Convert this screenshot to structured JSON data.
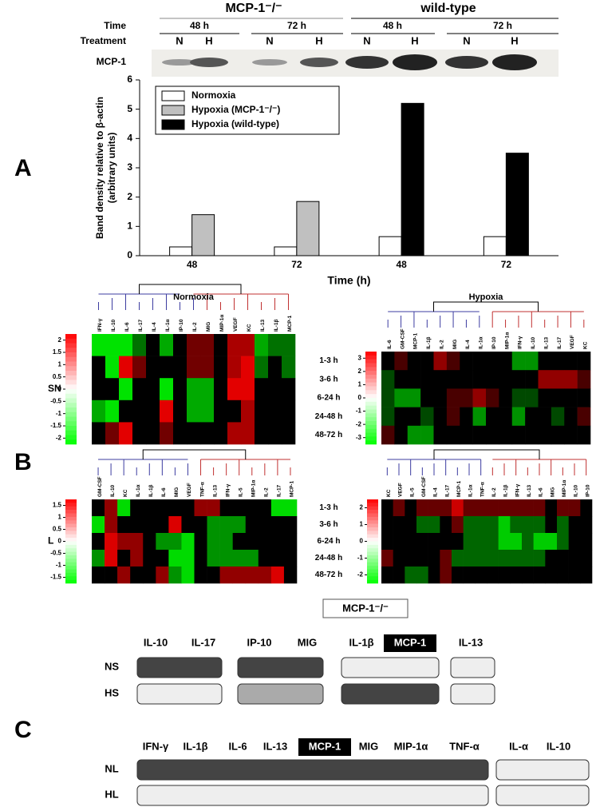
{
  "panel_labels": [
    "A",
    "B",
    "C"
  ],
  "blot": {
    "row_labels": [
      "Time",
      "Treatment",
      "MCP-1"
    ],
    "groups": [
      "MCP-1⁻/⁻",
      "wild-type"
    ],
    "times": [
      "48 h",
      "72 h",
      "48 h",
      "72 h"
    ],
    "treatments": [
      "N",
      "H",
      "N",
      "H",
      "N",
      "H",
      "N",
      "H"
    ]
  },
  "chart_data": [
    {
      "type": "bar",
      "xlabel": "Time (h)",
      "ylabel": [
        "Band density relative to β-actin",
        "(arbitrary units)"
      ],
      "categories": [
        "48",
        "72",
        "48",
        "72"
      ],
      "series": [
        {
          "name": "Normoxia",
          "color": "#ffffff",
          "values": [
            0.3,
            0.3,
            0.65,
            0.65
          ]
        },
        {
          "name": "Hypoxia (MCP-1⁻/⁻)",
          "color": "#c0c0c0",
          "values": [
            1.4,
            1.85,
            null,
            null
          ]
        },
        {
          "name": "Hypoxia (wild-type)",
          "color": "#000000",
          "values": [
            null,
            null,
            5.2,
            3.5
          ]
        }
      ],
      "ylim": [
        0,
        6
      ],
      "yticks": [
        0,
        1,
        2,
        3,
        4,
        5,
        6
      ],
      "legend": "top-left"
    },
    {
      "type": "heatmap",
      "title": "Normoxia",
      "side_label": "SN",
      "columns": [
        "IFN-γ",
        "IL-10",
        "IL-6",
        "IL-17",
        "IL-4",
        "IL-1α",
        "IP-10",
        "IL-2",
        "MIG",
        "MIP-1α",
        "VEGF",
        "KC",
        "IL-13",
        "IL-1β",
        "MCP-1"
      ],
      "clim": [
        -2.25,
        2.25
      ],
      "cticks": [
        2,
        1.5,
        1,
        0.5,
        0,
        -0.5,
        -1,
        -1.5,
        -2
      ],
      "values": [
        [
          -2,
          -2,
          -2,
          -1,
          0,
          -1.5,
          0,
          1,
          1,
          0,
          1.5,
          1.5,
          -1.5,
          -1,
          -1
        ],
        [
          0,
          -2,
          2,
          1,
          0,
          0,
          0,
          1,
          1,
          0,
          1.5,
          2,
          -1,
          0,
          -1
        ],
        [
          0,
          0,
          -2,
          0,
          0,
          -2,
          0,
          -1.5,
          -1.5,
          0,
          2,
          2,
          0,
          0,
          0
        ],
        [
          -1.5,
          -2,
          0,
          0,
          0,
          2,
          0,
          -1.5,
          -1.5,
          0,
          0,
          1.5,
          0,
          0,
          0
        ],
        [
          0,
          1,
          2,
          0,
          0,
          1,
          0,
          0,
          0,
          0,
          1.5,
          1.5,
          0,
          0,
          0
        ]
      ]
    },
    {
      "type": "heatmap",
      "title": "Hypoxia",
      "rows": [
        "1-3 h",
        "3-6 h",
        "6-24 h",
        "24-48 h",
        "48-72 h"
      ],
      "columns": [
        "IL-6",
        "GM-CSF",
        "MCP-1",
        "IL-1β",
        "IL-2",
        "MIG",
        "IL-4",
        "IL-1α",
        "IP-10",
        "MIP-1α",
        "IFN-γ",
        "IL-10",
        "IL-13",
        "IL-17",
        "VEGF",
        "KC"
      ],
      "clim": [
        -3.5,
        3.5
      ],
      "cticks": [
        3,
        2,
        1,
        0,
        -1,
        -2,
        -3
      ],
      "values": [
        [
          0,
          1,
          0,
          0,
          2,
          1,
          0,
          0,
          0,
          0,
          -2,
          -2,
          0,
          0,
          0,
          0
        ],
        [
          -1,
          0,
          0,
          0,
          0,
          0,
          0,
          0,
          0,
          0,
          0,
          0,
          2,
          2,
          2,
          1
        ],
        [
          -1,
          -2,
          -2,
          0,
          0,
          1,
          1,
          2,
          1,
          0,
          -1,
          -1,
          0,
          0,
          0,
          0
        ],
        [
          -1,
          0,
          0,
          -1,
          0,
          1,
          0,
          -2,
          0,
          0,
          -2,
          0,
          0,
          -1,
          0,
          1
        ],
        [
          1,
          0,
          -2,
          -2,
          0,
          0,
          0,
          0,
          0,
          0,
          0,
          0,
          0,
          0,
          0,
          0
        ]
      ]
    },
    {
      "type": "heatmap",
      "side_label": "L",
      "columns": [
        "GM-CSF",
        "IL-10",
        "KC",
        "IL-1α",
        "IL-1β",
        "IL-6",
        "MIG",
        "VEGF",
        "TNF-α",
        "IL-13",
        "IFN-γ",
        "IL-5",
        "MIP-1α",
        "IL-2",
        "IL-17",
        "MCP-1"
      ],
      "clim": [
        -1.75,
        1.75
      ],
      "cticks": [
        1.5,
        1,
        0.5,
        0,
        -0.5,
        -1,
        -1.5
      ],
      "values": [
        [
          0,
          1,
          -1.5,
          0,
          0,
          0,
          0,
          0,
          1,
          1,
          0,
          0,
          0,
          0,
          -1.5,
          -1.5
        ],
        [
          -1.5,
          1,
          0,
          0,
          0,
          0,
          1.5,
          0,
          0,
          -1,
          -1,
          -1,
          0,
          0,
          0,
          0
        ],
        [
          0,
          1.5,
          1,
          1,
          0,
          -1,
          -1,
          -1.5,
          0,
          -1,
          -1,
          0,
          0,
          0,
          0,
          0
        ],
        [
          -1,
          1.5,
          0,
          1,
          0,
          0,
          -1.5,
          -1.5,
          0,
          -1,
          -1,
          -1,
          -1,
          0,
          0,
          0
        ],
        [
          0,
          0,
          1,
          0,
          0,
          1,
          -1,
          -1.5,
          0,
          0,
          1,
          1,
          1,
          1,
          1.5,
          0
        ]
      ]
    },
    {
      "type": "heatmap",
      "rows": [
        "1-3 h",
        "3-6 h",
        "6-24 h",
        "24-48 h",
        "48-72 h"
      ],
      "columns": [
        "KC",
        "VEGF",
        "IL-5",
        "GM-CSF",
        "IL-4",
        "IL-17",
        "MCP-1",
        "IL-1α",
        "TNF-α",
        "IL-2",
        "IL-1β",
        "IFN-γ",
        "IL-13",
        "IL-6",
        "MIG",
        "MIP-1α",
        "IL-10",
        "IP-10"
      ],
      "clim": [
        -2.5,
        2.5
      ],
      "cticks": [
        2,
        1,
        0,
        -1,
        -2
      ],
      "values": [
        [
          0,
          1,
          0,
          1,
          1,
          1,
          2,
          1,
          1,
          1,
          1,
          1,
          1,
          1,
          0,
          1,
          1,
          0
        ],
        [
          0,
          0,
          0,
          -1,
          -1,
          0,
          1,
          -1,
          -1,
          -1,
          -2,
          -1,
          -1,
          -1,
          0,
          -1,
          0,
          0
        ],
        [
          0,
          0,
          0,
          0,
          0,
          0,
          0,
          -1,
          -1,
          -1,
          -2,
          -2,
          -1,
          -2,
          -2,
          -1,
          0,
          0
        ],
        [
          1,
          0,
          0,
          0,
          0,
          1,
          -1,
          -1,
          -1,
          -1,
          -1,
          -1,
          -1,
          -1,
          0,
          0,
          0,
          0
        ],
        [
          0,
          0,
          -1,
          -1,
          0,
          1,
          0,
          0,
          0,
          0,
          0,
          0,
          0,
          0,
          0,
          0,
          0,
          0
        ]
      ]
    }
  ],
  "panel_c": {
    "knockout": "MCP-1⁻/⁻",
    "top": {
      "labels": [
        "IL-10",
        "IL-17",
        "IP-10",
        "MIG",
        "IL-1β",
        "MCP-1",
        "IL-13"
      ],
      "rows": [
        {
          "label": "NS",
          "fills": [
            "#444444",
            "#444444",
            "#eeeeee",
            "#eeeeee"
          ]
        },
        {
          "label": "HS",
          "fills": [
            "#eeeeee",
            "#aaaaaa",
            "#444444",
            "#eeeeee"
          ]
        }
      ]
    },
    "bottom": {
      "labels": [
        "IFN-γ",
        "IL-1β",
        "IL-6",
        "IL-13",
        "MCP-1",
        "MIG",
        "MIP-1α",
        "TNF-α",
        "IL-α",
        "IL-10"
      ],
      "rows": [
        {
          "label": "NL",
          "fills": [
            "#444444",
            "#eeeeee"
          ]
        },
        {
          "label": "HL",
          "fills": [
            "#eeeeee",
            "#eeeeee"
          ]
        }
      ]
    }
  }
}
